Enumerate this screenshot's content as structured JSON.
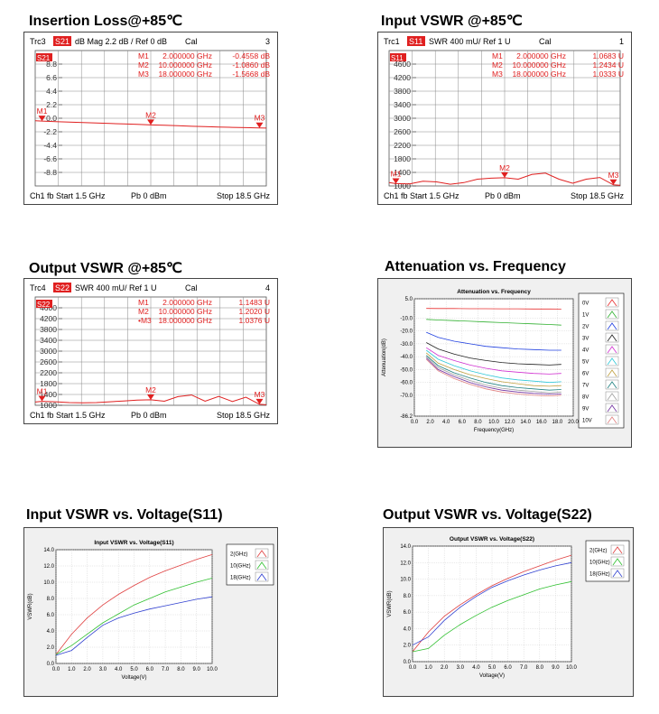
{
  "titles": {
    "p1": "Insertion Loss@+85℃",
    "p2": "Input VSWR @+85℃",
    "p3": "Output VSWR @+85℃",
    "p4": "Attenuation vs. Frequency",
    "p5": "Input VSWR vs. Voltage(S11)",
    "p6": "Output VSWR vs. Voltage(S22)"
  },
  "chart_data": [
    {
      "type": "line",
      "header": {
        "trace": "Trc3",
        "param": "S21",
        "format": "dB Mag  2.2 dB /  Ref 0 dB",
        "cal": "Cal",
        "num": "3"
      },
      "footer": {
        "ch": "Ch1  fb  Start  1.5 GHz",
        "pb": "Pb  0 dBm",
        "stop": "Stop  18.5 GHz"
      },
      "markers_text": [
        {
          "m": "M1",
          "f": "2.000000  GHz",
          "v": "-0.4558 dB"
        },
        {
          "m": "M2",
          "f": "10.000000  GHz",
          "v": "-1.0860 dB"
        },
        {
          "m": "M3",
          "f": "18.000000  GHz",
          "v": "-1.5668 dB"
        }
      ],
      "ref_label": "S21",
      "yticks": [
        "8.8",
        "6.6",
        "4.4",
        "2.2",
        "0.0",
        "-2.2",
        "-4.4",
        "-6.6",
        "-8.8"
      ],
      "ylim": [
        -11,
        11
      ],
      "xlim": [
        1.5,
        18.5
      ],
      "x": [
        1.5,
        2,
        3,
        4,
        5,
        6,
        7,
        8,
        9,
        10,
        11,
        12,
        13,
        14,
        15,
        16,
        17,
        18,
        18.5
      ],
      "y": [
        -0.4,
        -0.46,
        -0.55,
        -0.62,
        -0.7,
        -0.78,
        -0.85,
        -0.92,
        -1.0,
        -1.09,
        -1.15,
        -1.22,
        -1.3,
        -1.36,
        -1.42,
        -1.48,
        -1.53,
        -1.57,
        -1.6
      ],
      "markers": [
        {
          "label": "M1",
          "x": 2,
          "y": -0.46
        },
        {
          "label": "M2",
          "x": 10,
          "y": -1.09
        },
        {
          "label": "M3",
          "x": 18,
          "y": -1.57
        }
      ]
    },
    {
      "type": "line",
      "header": {
        "trace": "Trc1",
        "param": "S11",
        "format": "SWR  400 mU/  Ref 1 U",
        "cal": "Cal",
        "num": "1"
      },
      "footer": {
        "ch": "Ch1  fb  Start  1.5 GHz",
        "pb": "Pb  0 dBm",
        "stop": "Stop  18.5 GHz"
      },
      "markers_text": [
        {
          "m": "M1",
          "f": "2.000000  GHz",
          "v": "1.0683  U"
        },
        {
          "m": "M2",
          "f": "10.000000  GHz",
          "v": "1.2434  U"
        },
        {
          "m": "M3",
          "f": "18.000000  GHz",
          "v": "1.0333  U"
        }
      ],
      "ref_label": "S11",
      "yticks": [
        "4600",
        "4200",
        "3800",
        "3400",
        "3000",
        "2600",
        "2200",
        "1800",
        "1400",
        "1000"
      ],
      "ylim": [
        1000,
        5000
      ],
      "xlim": [
        1.5,
        18.5
      ],
      "x": [
        1.5,
        2,
        3,
        4,
        5,
        6,
        7,
        8,
        9,
        10,
        11,
        12,
        13,
        14,
        15,
        16,
        17,
        18,
        18.5
      ],
      "y": [
        1100,
        1068,
        1060,
        1140,
        1120,
        1050,
        1100,
        1200,
        1230,
        1243,
        1200,
        1340,
        1380,
        1200,
        1080,
        1200,
        1250,
        1033,
        1020
      ],
      "markers": [
        {
          "label": "M1",
          "x": 2,
          "y": 1068
        },
        {
          "label": "M2",
          "x": 10,
          "y": 1243
        },
        {
          "label": "M3",
          "x": 18,
          "y": 1033
        }
      ]
    },
    {
      "type": "line",
      "header": {
        "trace": "Trc4",
        "param": "S22",
        "format": "SWR  400 mU/  Ref 1 U",
        "cal": "Cal",
        "num": "4"
      },
      "footer": {
        "ch": "Ch1  fb  Start  1.5 GHz",
        "pb": "Pb  0 dBm",
        "stop": "Stop  18.5 GHz"
      },
      "markers_text": [
        {
          "m": "M1",
          "f": "2.000000  GHz",
          "v": "1.1483  U"
        },
        {
          "m": "M2",
          "f": "10.000000  GHz",
          "v": "1.2020  U"
        },
        {
          "m": "•M3",
          "f": "18.000000  GHz",
          "v": "1.0376  U"
        }
      ],
      "ref_label": "S22",
      "yticks": [
        "4600",
        "4200",
        "3800",
        "3400",
        "3000",
        "2600",
        "2200",
        "1800",
        "1400",
        "1000"
      ],
      "ylim": [
        1000,
        5000
      ],
      "xlim": [
        1.5,
        18.5
      ],
      "x": [
        1.5,
        2,
        3,
        4,
        5,
        6,
        7,
        8,
        9,
        10,
        11,
        12,
        13,
        14,
        15,
        16,
        17,
        18,
        18.5
      ],
      "y": [
        1120,
        1148,
        1130,
        1100,
        1090,
        1100,
        1130,
        1160,
        1190,
        1202,
        1150,
        1320,
        1380,
        1150,
        1330,
        1140,
        1300,
        1038,
        1020
      ],
      "markers": [
        {
          "label": "M1",
          "x": 2,
          "y": 1148
        },
        {
          "label": "M2",
          "x": 10,
          "y": 1202
        },
        {
          "label": "M3",
          "x": 18,
          "y": 1038
        }
      ]
    },
    {
      "type": "line",
      "title": "Attenuation vs. Frequency",
      "xlabel": "Frequency(GHz)",
      "ylabel": "Attenuation(dB)",
      "xlim": [
        0,
        20
      ],
      "ylim": [
        -86.2,
        5
      ],
      "yticks": [
        5.0,
        -10.0,
        -20.0,
        -30.0,
        -40.0,
        -50.0,
        -60.0,
        -70.0,
        -86.2
      ],
      "xticks": [
        0.0,
        2.0,
        4.0,
        6.0,
        8.0,
        10.0,
        12.0,
        14.0,
        16.0,
        18.0,
        20.0
      ],
      "x": [
        1.5,
        3,
        5,
        7,
        9,
        11,
        13,
        15,
        17,
        18.5
      ],
      "series": [
        {
          "name": "0V",
          "color": "#e83030",
          "values": [
            -2.5,
            -2.6,
            -2.6,
            -2.7,
            -2.7,
            -2.8,
            -2.8,
            -2.9,
            -2.9,
            -3.0
          ]
        },
        {
          "name": "1V",
          "color": "#30b030",
          "values": [
            -11,
            -11.5,
            -12,
            -12.5,
            -13,
            -13.5,
            -14,
            -14.5,
            -15,
            -15.5
          ]
        },
        {
          "name": "2V",
          "color": "#2040e0",
          "values": [
            -21,
            -25,
            -28,
            -30,
            -32,
            -33,
            -34,
            -34.5,
            -35,
            -35
          ]
        },
        {
          "name": "3V",
          "color": "#202020",
          "values": [
            -29,
            -34,
            -38,
            -41,
            -43,
            -44.5,
            -45.5,
            -46,
            -46.5,
            -46
          ]
        },
        {
          "name": "4V",
          "color": "#d030d0",
          "values": [
            -33,
            -39,
            -43,
            -46.5,
            -49,
            -51,
            -52,
            -53,
            -53.5,
            -53
          ]
        },
        {
          "name": "5V",
          "color": "#30c8d8",
          "values": [
            -35,
            -42,
            -47,
            -51,
            -54,
            -56.5,
            -58,
            -59,
            -60,
            -59.5
          ]
        },
        {
          "name": "6V",
          "color": "#c0a040",
          "values": [
            -37,
            -45,
            -50,
            -54,
            -57,
            -59.5,
            -61,
            -62.5,
            -63,
            -62.5
          ]
        },
        {
          "name": "7V",
          "color": "#208080",
          "values": [
            -39,
            -47,
            -52.5,
            -56.5,
            -60,
            -62.5,
            -64,
            -65,
            -66,
            -65.5
          ]
        },
        {
          "name": "8V",
          "color": "#a0a0a0",
          "values": [
            -40,
            -48.5,
            -54,
            -58.5,
            -62,
            -64.5,
            -66,
            -67,
            -68,
            -67.5
          ]
        },
        {
          "name": "9V",
          "color": "#7030a0",
          "values": [
            -41,
            -50,
            -55.5,
            -60,
            -63.5,
            -66,
            -67.5,
            -68.5,
            -69,
            -69
          ]
        },
        {
          "name": "10V",
          "color": "#e08080",
          "values": [
            -42,
            -51,
            -57,
            -61.5,
            -65,
            -67.5,
            -69,
            -70,
            -70.5,
            -70
          ]
        }
      ]
    },
    {
      "type": "line",
      "title": "Input VSWR vs. Voltage(S11)",
      "xlabel": "Voltage(V)",
      "ylabel": "VSWR(dB)",
      "xlim": [
        0,
        10
      ],
      "ylim": [
        0,
        14
      ],
      "yticks": [
        0.0,
        2.0,
        4.0,
        6.0,
        8.0,
        10.0,
        12.0,
        14.0
      ],
      "xticks": [
        0.0,
        1.0,
        2.0,
        3.0,
        4.0,
        5.0,
        6.0,
        7.0,
        8.0,
        9.0,
        10.0
      ],
      "x": [
        0,
        1,
        2,
        3,
        4,
        5,
        6,
        7,
        8,
        9,
        10
      ],
      "series": [
        {
          "name": "2(GHz)",
          "color": "#e04040",
          "values": [
            1.1,
            3.6,
            5.6,
            7.2,
            8.5,
            9.6,
            10.6,
            11.4,
            12.1,
            12.8,
            13.4
          ]
        },
        {
          "name": "10(GHz)",
          "color": "#30c030",
          "values": [
            1.1,
            2.2,
            3.6,
            5.0,
            6.1,
            7.2,
            8.0,
            8.8,
            9.4,
            10.0,
            10.5
          ]
        },
        {
          "name": "18(GHz)",
          "color": "#3040d0",
          "values": [
            1.0,
            1.6,
            3.2,
            4.7,
            5.6,
            6.2,
            6.7,
            7.1,
            7.5,
            7.9,
            8.2
          ]
        }
      ]
    },
    {
      "type": "line",
      "title": "Output VSWR vs. Voltage(S22)",
      "xlabel": "Voltage(V)",
      "ylabel": "VSWR(dB)",
      "xlim": [
        0,
        10
      ],
      "ylim": [
        0,
        14
      ],
      "yticks": [
        0.0,
        2.0,
        4.0,
        6.0,
        8.0,
        10.0,
        12.0,
        14.0
      ],
      "xticks": [
        0.0,
        1.0,
        2.0,
        3.0,
        4.0,
        5.0,
        6.0,
        7.0,
        8.0,
        9.0,
        10.0
      ],
      "x": [
        0,
        1,
        2,
        3,
        4,
        5,
        6,
        7,
        8,
        9,
        10
      ],
      "series": [
        {
          "name": "2(GHz)",
          "color": "#e04040",
          "values": [
            1.2,
            3.6,
            5.5,
            6.9,
            8.1,
            9.2,
            10.1,
            10.9,
            11.6,
            12.3,
            12.9
          ]
        },
        {
          "name": "10(GHz)",
          "color": "#30c030",
          "values": [
            1.2,
            1.6,
            3.2,
            4.5,
            5.6,
            6.6,
            7.4,
            8.1,
            8.8,
            9.3,
            9.7
          ]
        },
        {
          "name": "18(GHz)",
          "color": "#3040d0",
          "values": [
            2.0,
            3.0,
            5.0,
            6.6,
            7.9,
            9.0,
            9.8,
            10.5,
            11.1,
            11.6,
            12.0
          ]
        }
      ]
    }
  ]
}
